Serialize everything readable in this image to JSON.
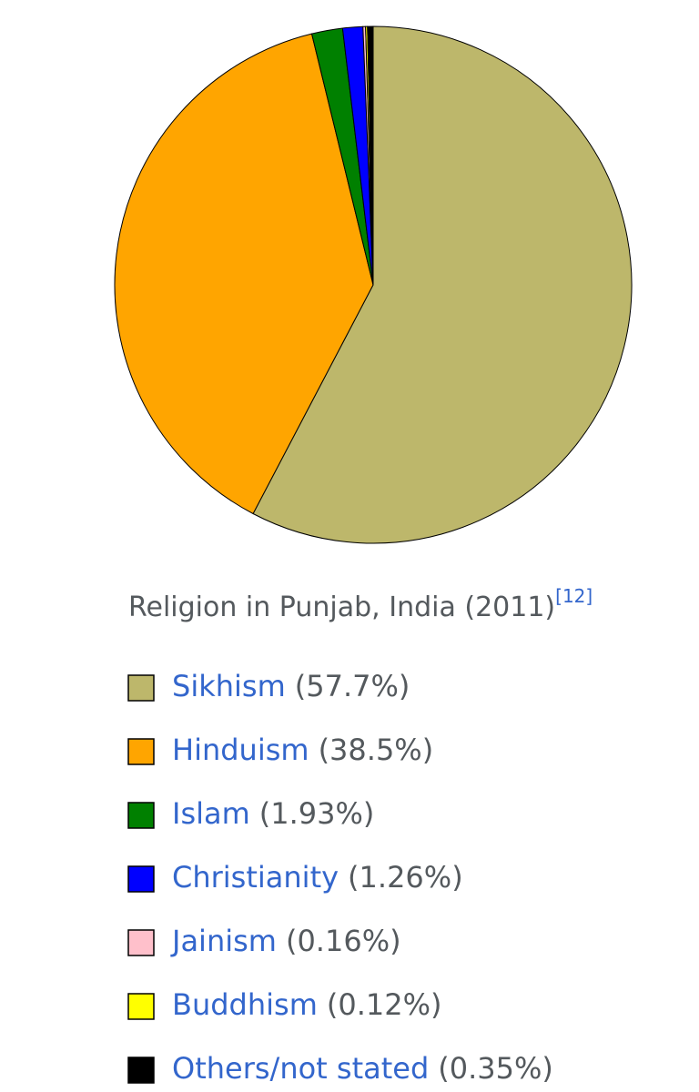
{
  "chart_data": {
    "type": "pie",
    "title": "Religion in Punjab, India (2011)",
    "title_ref": "[12]",
    "categories": [
      "Sikhism",
      "Hinduism",
      "Islam",
      "Christianity",
      "Jainism",
      "Buddhism",
      "Others/not stated"
    ],
    "values": [
      57.7,
      38.5,
      1.93,
      1.26,
      0.16,
      0.12,
      0.35
    ],
    "value_labels": [
      "(57.7%)",
      "(38.5%)",
      "(1.93%)",
      "(1.26%)",
      "(0.16%)",
      "(0.12%)",
      "(0.35%)"
    ],
    "colors": [
      "#bdb76b",
      "#ffa500",
      "#008000",
      "#0000ff",
      "#ffc0cb",
      "#ffff00",
      "#000000"
    ]
  }
}
